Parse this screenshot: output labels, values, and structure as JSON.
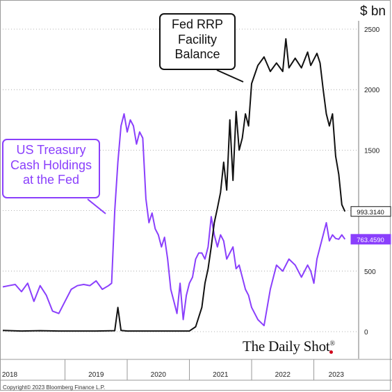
{
  "header": {
    "unit_label": "$ bn"
  },
  "footer": {
    "copyright": "Copyright© 2023 Bloomberg Finance L.P.",
    "brand": "The Daily Shot",
    "brand_mark": "®"
  },
  "callouts": {
    "rrp": [
      "Fed RRP",
      "Facility",
      "Balance"
    ],
    "tga": [
      "US Treasury",
      "Cash Holdings",
      "at the Fed"
    ]
  },
  "colors": {
    "rrp": "#111111",
    "tga": "#8a3ffc",
    "grid": "#9a9a9a",
    "dot": "#d0021b"
  },
  "chart_data": {
    "type": "line",
    "title": "",
    "xlabel": "",
    "ylabel": "$ bn",
    "ylim": [
      0,
      2500
    ],
    "yticks": [
      0,
      500,
      1000,
      1500,
      2000,
      2500
    ],
    "y_axis_side": "right",
    "xlim": [
      2018.0,
      2023.72
    ],
    "x_tick_labels": [
      "2018",
      "2019",
      "2020",
      "2021",
      "2022",
      "2023"
    ],
    "grid": "horizontal dotted",
    "series": [
      {
        "name": "Fed RRP Facility Balance",
        "color": "#111111",
        "last_value_label": "993.3140",
        "x": [
          2018.0,
          2018.3,
          2018.6,
          2018.9,
          2019.2,
          2019.5,
          2019.8,
          2019.85,
          2019.9,
          2020.0,
          2020.3,
          2020.6,
          2020.9,
          2021.0,
          2021.1,
          2021.2,
          2021.25,
          2021.3,
          2021.35,
          2021.4,
          2021.45,
          2021.5,
          2021.55,
          2021.6,
          2021.65,
          2021.7,
          2021.75,
          2021.8,
          2021.85,
          2021.9,
          2021.95,
          2022.0,
          2022.1,
          2022.2,
          2022.3,
          2022.4,
          2022.5,
          2022.55,
          2022.6,
          2022.7,
          2022.8,
          2022.9,
          2022.95,
          2023.0,
          2023.05,
          2023.1,
          2023.15,
          2023.2,
          2023.25,
          2023.3,
          2023.35,
          2023.4,
          2023.45,
          2023.5
        ],
        "y": [
          10,
          5,
          8,
          5,
          5,
          5,
          8,
          200,
          10,
          5,
          5,
          5,
          5,
          5,
          40,
          200,
          400,
          520,
          700,
          900,
          1020,
          1150,
          1400,
          1170,
          1750,
          1250,
          1820,
          1500,
          1600,
          1800,
          1700,
          2050,
          2200,
          2270,
          2150,
          2220,
          2150,
          2420,
          2180,
          2260,
          2180,
          2310,
          2200,
          2250,
          2300,
          2220,
          2000,
          1800,
          1700,
          1800,
          1450,
          1300,
          1050,
          993.3
        ]
      },
      {
        "name": "US Treasury Cash Holdings at the Fed",
        "color": "#8a3ffc",
        "last_value_label": "763.4590",
        "x": [
          2018.0,
          2018.1,
          2018.2,
          2018.3,
          2018.4,
          2018.5,
          2018.6,
          2018.7,
          2018.8,
          2018.9,
          2019.0,
          2019.1,
          2019.2,
          2019.3,
          2019.4,
          2019.5,
          2019.6,
          2019.7,
          2019.75,
          2019.8,
          2019.85,
          2019.9,
          2019.95,
          2020.0,
          2020.05,
          2020.1,
          2020.15,
          2020.2,
          2020.25,
          2020.3,
          2020.35,
          2020.4,
          2020.45,
          2020.5,
          2020.55,
          2020.6,
          2020.65,
          2020.7,
          2020.75,
          2020.8,
          2020.85,
          2020.9,
          2020.95,
          2021.0,
          2021.05,
          2021.1,
          2021.15,
          2021.2,
          2021.25,
          2021.3,
          2021.35,
          2021.4,
          2021.45,
          2021.5,
          2021.55,
          2021.6,
          2021.65,
          2021.7,
          2021.75,
          2021.8,
          2021.85,
          2021.9,
          2021.95,
          2022.0,
          2022.1,
          2022.2,
          2022.3,
          2022.4,
          2022.5,
          2022.6,
          2022.7,
          2022.8,
          2022.9,
          2022.95,
          2023.0,
          2023.05,
          2023.1,
          2023.15,
          2023.2,
          2023.25,
          2023.3,
          2023.35,
          2023.4,
          2023.45,
          2023.5
        ],
        "y": [
          370,
          380,
          390,
          330,
          400,
          250,
          380,
          300,
          170,
          150,
          250,
          350,
          380,
          390,
          380,
          420,
          350,
          380,
          400,
          1000,
          1400,
          1700,
          1800,
          1650,
          1750,
          1700,
          1550,
          1650,
          1600,
          1100,
          900,
          980,
          850,
          800,
          700,
          780,
          600,
          350,
          250,
          150,
          400,
          100,
          300,
          400,
          450,
          600,
          650,
          650,
          600,
          700,
          950,
          800,
          700,
          800,
          750,
          600,
          650,
          700,
          520,
          550,
          450,
          350,
          300,
          200,
          100,
          50,
          350,
          550,
          500,
          600,
          550,
          450,
          550,
          500,
          400,
          600,
          700,
          800,
          900,
          750,
          800,
          770,
          763.5,
          800,
          763.5
        ]
      }
    ]
  }
}
